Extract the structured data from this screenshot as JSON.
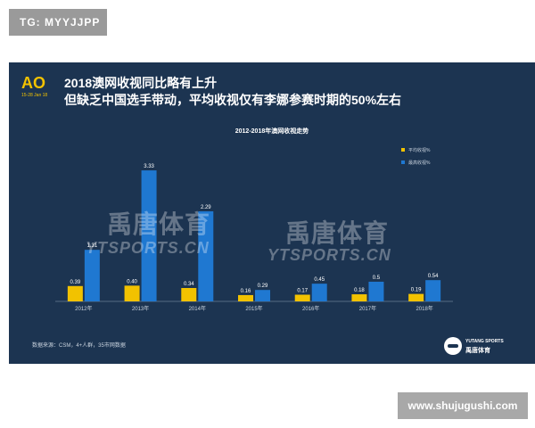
{
  "corner_tag": "TG: MYYJJPP",
  "logo": {
    "mark": "AO",
    "dates": "15-28 Jan 18"
  },
  "headline": {
    "line1": "2018澳网收视同比略有上升",
    "line2": "但缺乏中国选手带动，平均收视仅有李娜参赛时期的50%左右"
  },
  "watermark": {
    "cn": "禹唐体育",
    "en": "YTSPORTS.CN"
  },
  "source": "数据来源：CSM，4+人群，35市网数据",
  "brand": {
    "en": "YUTANG SPORTS",
    "cn": "禹唐体育"
  },
  "site_tag": "www.shujugushi.com",
  "colors": {
    "background": "#1c3451",
    "avg": "#f2c200",
    "peak": "#1f78d1"
  },
  "chart_data": {
    "type": "bar",
    "title": "2012-2018年澳网收视走势",
    "categories": [
      "2012年",
      "2013年",
      "2014年",
      "2015年",
      "2016年",
      "2017年",
      "2018年"
    ],
    "series": [
      {
        "name": "平均收视%",
        "values": [
          0.39,
          0.4,
          0.34,
          0.16,
          0.17,
          0.18,
          0.19
        ],
        "labels": [
          "0.39",
          "0.40",
          "0.34",
          "0.16",
          "0.17",
          "0.18",
          "0.19"
        ],
        "color": "#f2c200"
      },
      {
        "name": "最高收视%",
        "values": [
          1.31,
          3.33,
          2.29,
          0.29,
          0.45,
          0.5,
          0.54
        ],
        "labels": [
          "1.31",
          "3.33",
          "2.29",
          "0.29",
          "0.45",
          "0.5",
          "0.54"
        ],
        "color": "#1f78d1"
      }
    ],
    "ylim": [
      0,
      3.4
    ],
    "grid": false,
    "legend_position": "top-right"
  }
}
